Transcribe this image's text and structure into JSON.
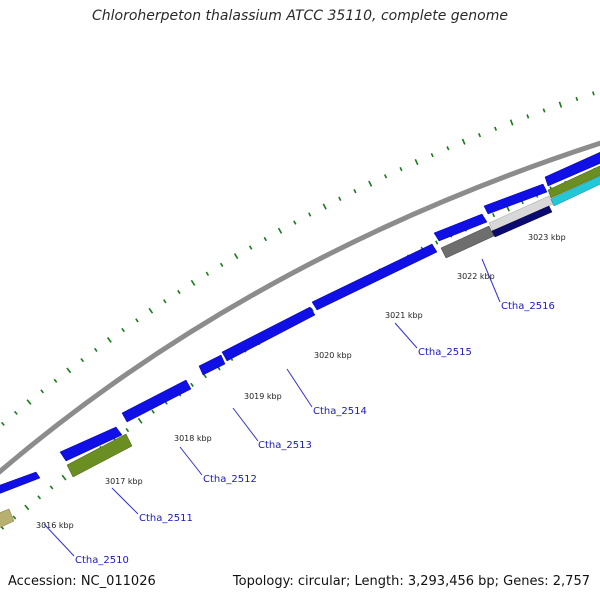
{
  "header": {
    "title": "Chloroherpeton thalassium ATCC 35110, complete genome"
  },
  "footer": {
    "accession": "Accession: NC_011026",
    "topology": "Topology: circular; Length: 3,293,456 bp; Genes: 2,757"
  },
  "colors": {
    "backbone": "#8c8c8c",
    "cds": "#1010e6",
    "cds_edge": "#00009a",
    "olive_feature": "#6b8e23",
    "khaki_feature": "#b8b070",
    "grey_feature": "#6e6e6e",
    "navy_feature": "#0a0a70",
    "cyan_feature": "#22c8d8",
    "light_feature": "#d8d8d8",
    "gc_ticks": "#1a7a1a",
    "label_text": "#1a1ab8",
    "label_line": "#3333cc"
  },
  "scale_labels": [
    "3016 kbp",
    "3017 kbp",
    "3018 kbp",
    "3019 kbp",
    "3020 kbp",
    "3021 kbp",
    "3022 kbp",
    "3023 kbp"
  ],
  "gene_labels": [
    "Ctha_2510",
    "Ctha_2511",
    "Ctha_2512",
    "Ctha_2513",
    "Ctha_2514",
    "Ctha_2515",
    "Ctha_2516"
  ]
}
